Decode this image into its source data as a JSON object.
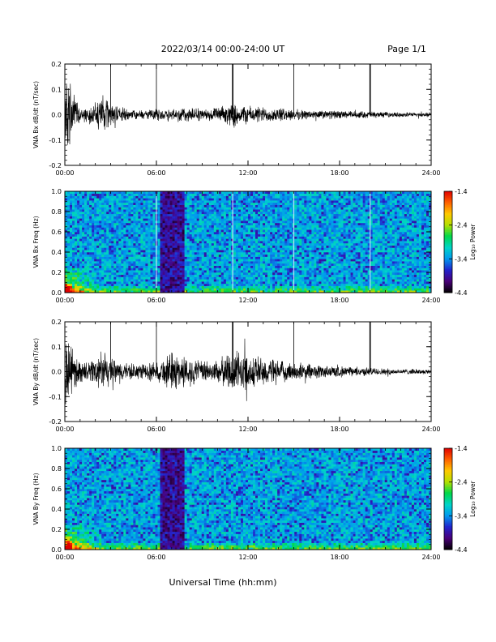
{
  "header": {
    "date_range": "2022/03/14  00:00-24:00 UT",
    "page": "Page 1/1"
  },
  "xaxis": {
    "label": "Universal Time (hh:mm)",
    "range_hours": [
      0,
      24
    ],
    "tick_labels": [
      "00:00",
      "06:00",
      "12:00",
      "18:00",
      "24:00"
    ]
  },
  "colorbar": {
    "label": "Log₁₀ Power",
    "range": [
      -4.4,
      -1.4
    ],
    "tick_labels": [
      "-1.4",
      "-2.4",
      "-3.4",
      "-4.4"
    ],
    "colors": [
      "#000000",
      "#4a0078",
      "#2222cc",
      "#0099ee",
      "#00d4c8",
      "#00d84a",
      "#b4e000",
      "#ffc800",
      "#ff6000",
      "#e00000"
    ]
  },
  "chart_data": [
    {
      "type": "line",
      "ylabel": "VNA Bx dB/dt (nT/sec)",
      "ylim": [
        -0.2,
        0.2
      ],
      "ytick_labels": [
        "0.2",
        "0.1",
        "0.0",
        "-0.1",
        "-0.2"
      ],
      "xlim": [
        0,
        24
      ],
      "description_values": {
        "baseline": 0.0,
        "spike_times_hours": [
          3.0,
          6.0,
          11.0,
          15.0,
          20.0
        ],
        "spike_amplitude": 0.2,
        "burst_windows_hours": [
          [
            0.0,
            1.0
          ],
          [
            2.0,
            3.0
          ],
          [
            10.5,
            11.5
          ]
        ]
      },
      "envelope": {
        "x_hours": [
          0,
          0.25,
          0.5,
          1,
          1.5,
          2,
          2.5,
          3,
          4,
          5,
          6,
          7,
          8,
          9,
          10,
          11,
          12,
          13,
          14,
          15,
          16,
          17,
          18,
          19,
          20,
          21,
          22,
          23,
          24
        ],
        "amplitude": [
          0.2,
          0.16,
          0.1,
          0.04,
          0.03,
          0.05,
          0.09,
          0.05,
          0.025,
          0.02,
          0.025,
          0.03,
          0.035,
          0.025,
          0.03,
          0.05,
          0.04,
          0.035,
          0.03,
          0.025,
          0.02,
          0.02,
          0.018,
          0.016,
          0.015,
          0.012,
          0.01,
          0.01,
          0.01
        ]
      }
    },
    {
      "type": "heatmap",
      "ylabel": "VNA Bx Freq (Hz)",
      "ylim": [
        0.0,
        1.0
      ],
      "ytick_labels": [
        "1.0",
        "0.8",
        "0.6",
        "0.4",
        "0.2",
        "0.0"
      ],
      "xlim": [
        0,
        24
      ],
      "zlim": [
        -4.4,
        -1.4
      ],
      "features": {
        "low_power_band_hours": [
          6.2,
          7.8
        ],
        "bright_low_freq_hours": [
          0.0,
          2.5
        ],
        "vertical_lines_hours": [
          6.0,
          11.0,
          15.0,
          20.0
        ]
      }
    },
    {
      "type": "line",
      "ylabel": "VNA By dB/dt (nT/sec)",
      "ylim": [
        -0.2,
        0.2
      ],
      "ytick_labels": [
        "0.2",
        "0.1",
        "0.0",
        "-0.1",
        "-0.2"
      ],
      "xlim": [
        0,
        24
      ],
      "description_values": {
        "baseline": 0.0,
        "spike_times_hours": [
          3.0,
          6.0,
          11.0,
          15.0,
          20.0
        ],
        "spike_amplitude": 0.2,
        "burst_windows_hours": [
          [
            0.0,
            1.0
          ],
          [
            2.0,
            3.0
          ],
          [
            6.5,
            8.0
          ],
          [
            11.0,
            13.5
          ]
        ]
      },
      "envelope": {
        "x_hours": [
          0,
          0.25,
          0.5,
          1,
          1.5,
          2,
          2.5,
          3,
          4,
          5,
          6,
          7,
          8,
          9,
          10,
          11,
          12,
          13,
          14,
          15,
          16,
          17,
          18,
          19,
          20,
          21,
          22,
          23,
          24
        ],
        "amplitude": [
          0.2,
          0.14,
          0.09,
          0.05,
          0.04,
          0.07,
          0.09,
          0.06,
          0.04,
          0.035,
          0.04,
          0.09,
          0.07,
          0.05,
          0.05,
          0.1,
          0.08,
          0.07,
          0.05,
          0.04,
          0.035,
          0.03,
          0.025,
          0.02,
          0.018,
          0.015,
          0.012,
          0.012,
          0.01
        ]
      }
    },
    {
      "type": "heatmap",
      "ylabel": "VNA By Freq (Hz)",
      "ylim": [
        0.0,
        1.0
      ],
      "ytick_labels": [
        "1.0",
        "0.8",
        "0.6",
        "0.4",
        "0.2",
        "0.0"
      ],
      "xlim": [
        0,
        24
      ],
      "zlim": [
        -4.4,
        -1.4
      ],
      "features": {
        "low_power_band_hours": [
          6.2,
          7.8
        ],
        "bright_low_freq_hours": [
          0.0,
          2.5
        ],
        "vertical_lines_hours": []
      }
    }
  ]
}
